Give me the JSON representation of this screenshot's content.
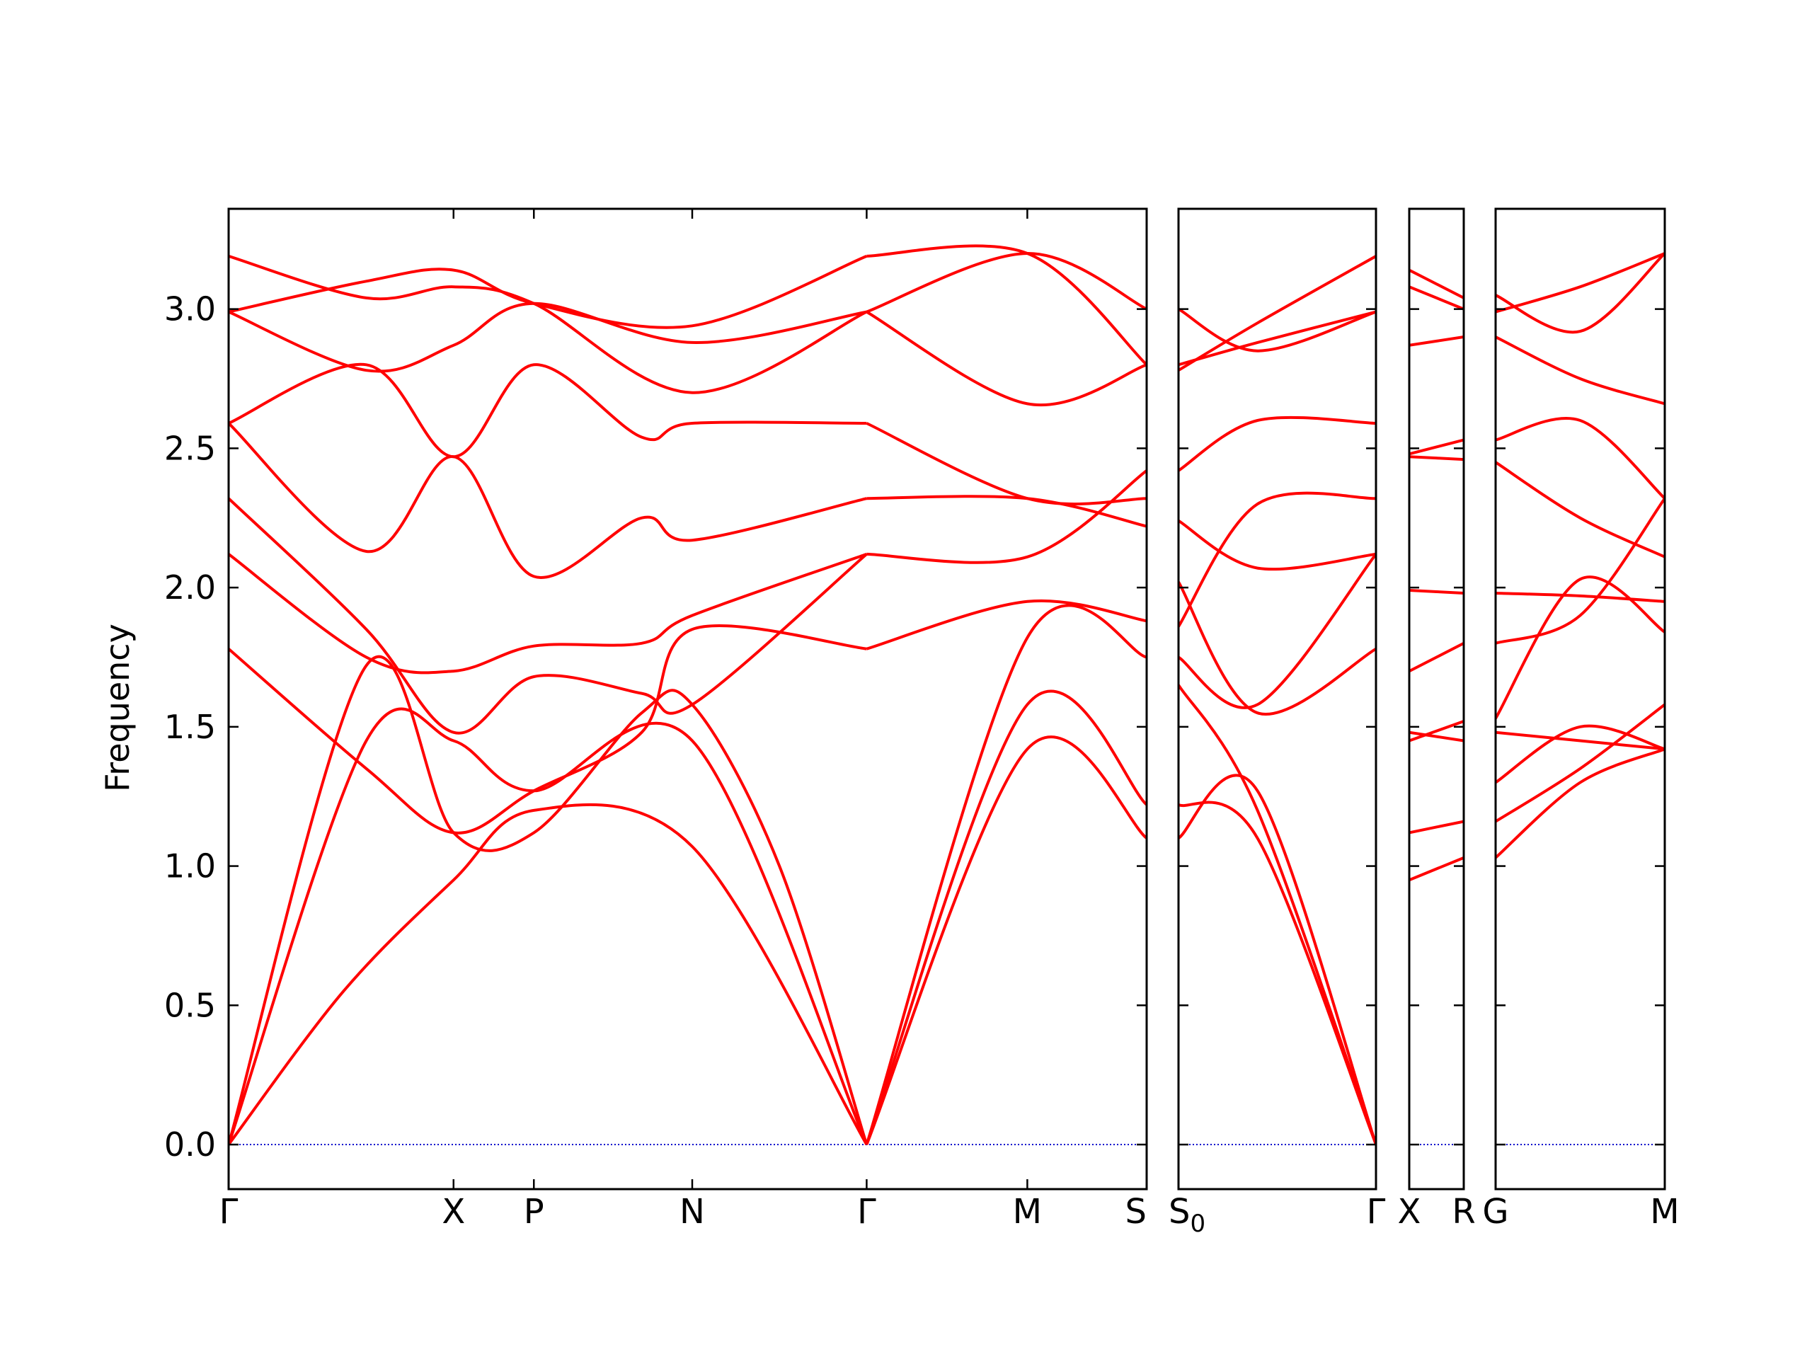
{
  "chart_data": {
    "type": "line",
    "ylabel": "Frequency",
    "ylim": [
      -0.16,
      3.36
    ],
    "yticks": [
      "0.0",
      "0.5",
      "1.0",
      "1.5",
      "2.0",
      "2.5",
      "3.0"
    ],
    "ytick_values": [
      0,
      0.5,
      1.0,
      1.5,
      2.0,
      2.5,
      3.0
    ],
    "grid": false,
    "band_color": "#ff0000",
    "zero_line_color": "#0000cc",
    "segments": [
      {
        "xlim": [
          0,
          4
        ],
        "labels": [
          {
            "x": 0,
            "text": "Γ"
          },
          {
            "x": 0.98,
            "text": "X"
          },
          {
            "x": 1.33,
            "text": "P"
          },
          {
            "x": 2.02,
            "text": "N"
          },
          {
            "x": 2.78,
            "text": "Γ"
          },
          {
            "x": 3.48,
            "text": "M"
          },
          {
            "x": 4,
            "text": "S"
          }
        ],
        "bands": [
          {
            "x": [
              0,
              0.5,
              0.98,
              1.33,
              2.02,
              2.78
            ],
            "y": [
              0,
              0.55,
              0.95,
              1.2,
              1.07,
              0
            ]
          },
          {
            "x": [
              0,
              0.6,
              0.98,
              1.33,
              2.02,
              2.78
            ],
            "y": [
              0,
              1.45,
              1.45,
              1.27,
              1.45,
              0
            ]
          },
          {
            "x": [
              0,
              0.6,
              0.98,
              1.33,
              1.8,
              2.02,
              2.4,
              2.78
            ],
            "y": [
              0,
              1.72,
              1.12,
              1.12,
              1.55,
              1.58,
              1.0,
              0
            ]
          },
          {
            "x": [
              0,
              0.6,
              0.98,
              1.33,
              1.8,
              2.02,
              2.78
            ],
            "y": [
              1.78,
              1.35,
              1.12,
              1.27,
              1.48,
              1.85,
              1.78
            ]
          },
          {
            "x": [
              0,
              0.6,
              0.98,
              1.33,
              1.8,
              2.02,
              2.78
            ],
            "y": [
              2.12,
              1.75,
              1.7,
              1.79,
              1.8,
              1.9,
              2.12
            ]
          },
          {
            "x": [
              0,
              0.6,
              0.98,
              1.33,
              1.8,
              2.02,
              2.78
            ],
            "y": [
              2.32,
              1.85,
              1.48,
              1.68,
              1.62,
              1.58,
              2.12
            ]
          },
          {
            "x": [
              0,
              0.6,
              0.98,
              1.33,
              1.8,
              2.02,
              2.78
            ],
            "y": [
              2.59,
              2.13,
              2.47,
              2.04,
              2.25,
              2.17,
              2.32
            ]
          },
          {
            "x": [
              0,
              0.6,
              0.98,
              1.33,
              1.8,
              2.02,
              2.78
            ],
            "y": [
              2.59,
              2.8,
              2.47,
              2.8,
              2.54,
              2.59,
              2.59
            ]
          },
          {
            "x": [
              0,
              0.6,
              0.98,
              1.33,
              2.02,
              2.78
            ],
            "y": [
              2.99,
              2.78,
              2.87,
              3.02,
              2.88,
              2.99
            ]
          },
          {
            "x": [
              0,
              0.6,
              0.98,
              1.33,
              2.02,
              2.78
            ],
            "y": [
              3.19,
              3.04,
              3.08,
              3.02,
              2.7,
              2.99
            ]
          },
          {
            "x": [
              0,
              0.6,
              0.98,
              1.33,
              2.02,
              2.78
            ],
            "y": [
              2.99,
              3.1,
              3.14,
              3.02,
              2.94,
              3.19
            ]
          },
          {
            "x": [
              2.78,
              3.48,
              4
            ],
            "y": [
              0,
              1.82,
              1.75
            ]
          },
          {
            "x": [
              2.78,
              3.48,
              4
            ],
            "y": [
              0,
              1.42,
              1.1
            ]
          },
          {
            "x": [
              2.78,
              3.48,
              4
            ],
            "y": [
              0,
              1.58,
              1.22
            ]
          },
          {
            "x": [
              2.78,
              3.48,
              4
            ],
            "y": [
              1.78,
              1.95,
              1.88
            ]
          },
          {
            "x": [
              2.78,
              3.48,
              4
            ],
            "y": [
              2.12,
              2.11,
              2.42
            ]
          },
          {
            "x": [
              2.78,
              3.48,
              4
            ],
            "y": [
              2.32,
              2.32,
              2.22
            ]
          },
          {
            "x": [
              2.78,
              3.48,
              4
            ],
            "y": [
              2.59,
              2.32,
              2.32
            ]
          },
          {
            "x": [
              2.78,
              3.48,
              4
            ],
            "y": [
              2.99,
              2.66,
              2.8
            ]
          },
          {
            "x": [
              2.78,
              3.48,
              4
            ],
            "y": [
              3.19,
              3.2,
              2.8
            ]
          },
          {
            "x": [
              2.78,
              3.48,
              4
            ],
            "y": [
              2.99,
              3.2,
              3.0
            ]
          }
        ]
      },
      {
        "xlim": [
          0,
          1
        ],
        "labels": [
          {
            "x": 0,
            "text": "S0"
          },
          {
            "x": 1,
            "text": "Γ"
          }
        ],
        "bands": [
          {
            "x": [
              0,
              0.4,
              1
            ],
            "y": [
              1.1,
              1.27,
              0
            ]
          },
          {
            "x": [
              0,
              0.4,
              1
            ],
            "y": [
              1.22,
              1.1,
              0
            ]
          },
          {
            "x": [
              0,
              0.4,
              1
            ],
            "y": [
              1.65,
              1.2,
              0
            ]
          },
          {
            "x": [
              0,
              0.4,
              1
            ],
            "y": [
              1.75,
              1.58,
              2.12
            ]
          },
          {
            "x": [
              0,
              0.4,
              1
            ],
            "y": [
              2.02,
              1.55,
              1.78
            ]
          },
          {
            "x": [
              0,
              0.4,
              1
            ],
            "y": [
              1.86,
              2.3,
              2.32
            ]
          },
          {
            "x": [
              0,
              0.4,
              1
            ],
            "y": [
              2.24,
              2.07,
              2.12
            ]
          },
          {
            "x": [
              0,
              0.4,
              1
            ],
            "y": [
              2.42,
              2.6,
              2.59
            ]
          },
          {
            "x": [
              0,
              0.4,
              1
            ],
            "y": [
              2.8,
              2.88,
              2.99
            ]
          },
          {
            "x": [
              0,
              0.4,
              1
            ],
            "y": [
              2.78,
              2.95,
              3.19
            ]
          },
          {
            "x": [
              0,
              0.4,
              1
            ],
            "y": [
              3.0,
              2.85,
              2.99
            ]
          }
        ]
      },
      {
        "xlim": [
          0,
          1
        ],
        "labels": [
          {
            "x": 0,
            "text": "X"
          },
          {
            "x": 1,
            "text": "R"
          }
        ],
        "bands": [
          {
            "x": [
              0,
              1
            ],
            "y": [
              0.95,
              1.03
            ]
          },
          {
            "x": [
              0,
              1
            ],
            "y": [
              1.12,
              1.16
            ]
          },
          {
            "x": [
              0,
              1
            ],
            "y": [
              1.45,
              1.52
            ]
          },
          {
            "x": [
              0,
              1
            ],
            "y": [
              1.48,
              1.45
            ]
          },
          {
            "x": [
              0,
              1
            ],
            "y": [
              1.7,
              1.8
            ]
          },
          {
            "x": [
              0,
              1
            ],
            "y": [
              1.99,
              1.98
            ]
          },
          {
            "x": [
              0,
              1
            ],
            "y": [
              2.47,
              2.46
            ]
          },
          {
            "x": [
              0,
              1
            ],
            "y": [
              2.48,
              2.53
            ]
          },
          {
            "x": [
              0,
              1
            ],
            "y": [
              2.87,
              2.9
            ]
          },
          {
            "x": [
              0,
              1
            ],
            "y": [
              3.08,
              3.0
            ]
          },
          {
            "x": [
              0,
              1
            ],
            "y": [
              3.14,
              3.04
            ]
          }
        ]
      },
      {
        "xlim": [
          0,
          1
        ],
        "labels": [
          {
            "x": 0,
            "text": "G"
          },
          {
            "x": 1,
            "text": "M"
          }
        ],
        "bands": [
          {
            "x": [
              0,
              0.5,
              1
            ],
            "y": [
              1.03,
              1.3,
              1.42
            ]
          },
          {
            "x": [
              0,
              0.5,
              1
            ],
            "y": [
              1.16,
              1.35,
              1.58
            ]
          },
          {
            "x": [
              0,
              0.5,
              1
            ],
            "y": [
              1.3,
              1.5,
              1.42
            ]
          },
          {
            "x": [
              0,
              0.5,
              1
            ],
            "y": [
              1.48,
              1.45,
              1.42
            ]
          },
          {
            "x": [
              0,
              0.5,
              1
            ],
            "y": [
              1.53,
              2.03,
              1.84
            ]
          },
          {
            "x": [
              0,
              0.5,
              1
            ],
            "y": [
              1.8,
              1.9,
              2.32
            ]
          },
          {
            "x": [
              0,
              0.5,
              1
            ],
            "y": [
              1.98,
              1.97,
              1.95
            ]
          },
          {
            "x": [
              0,
              0.5,
              1
            ],
            "y": [
              2.45,
              2.25,
              2.11
            ]
          },
          {
            "x": [
              0,
              0.5,
              1
            ],
            "y": [
              2.53,
              2.6,
              2.32
            ]
          },
          {
            "x": [
              0,
              0.5,
              1
            ],
            "y": [
              2.9,
              2.75,
              2.66
            ]
          },
          {
            "x": [
              0,
              0.5,
              1
            ],
            "y": [
              3.05,
              2.92,
              3.2
            ]
          },
          {
            "x": [
              0,
              0.5,
              1
            ],
            "y": [
              2.99,
              3.08,
              3.2
            ]
          }
        ]
      }
    ]
  }
}
